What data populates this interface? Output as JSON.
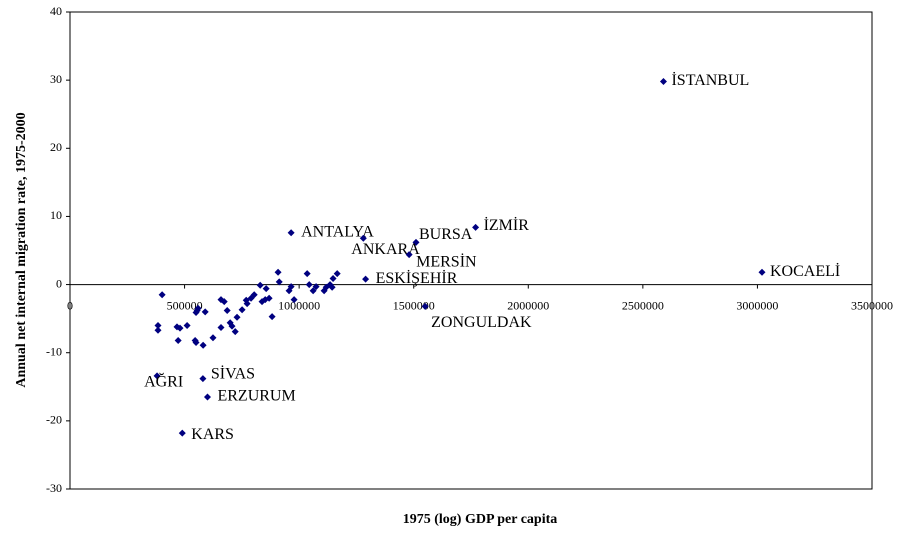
{
  "chart_data": {
    "type": "scatter",
    "x_label": "1975 (log) GDP per capita",
    "y_label": "Annual net internal migration rate, 1975-2000",
    "xlim": [
      0,
      3500000
    ],
    "xticks": [
      0,
      500000,
      1000000,
      1500000,
      2000000,
      2500000,
      3000000,
      3500000
    ],
    "ylim": [
      -30,
      40
    ],
    "yticks": [
      -30,
      -20,
      -10,
      0,
      10,
      20,
      30,
      40
    ],
    "series": [
      {
        "color": "#000080",
        "x": [
          2590000,
          3020000,
          1770000,
          1510000,
          965000,
          1280000,
          1480000,
          1290000,
          1550000,
          380000,
          580000,
          600000,
          490000,
          402000,
          384000,
          384000,
          467000,
          480000,
          511000,
          472000,
          550000,
          550000,
          555000,
          559000,
          590000,
          546000,
          581000,
          624000,
          659000,
          659000,
          673000,
          686000,
          699000,
          707000,
          729000,
          721000,
          751000,
          773000,
          769000,
          790000,
          804000,
          830000,
          838000,
          856000,
          852000,
          869000,
          882000,
          908000,
          913000,
          956000,
          965000,
          978000,
          1035000,
          1044000,
          1061000,
          1074000,
          1109000,
          1118000,
          1135000,
          1148000,
          1144000,
          1166000
        ],
        "values": [
          29.8,
          1.8,
          8.4,
          6.2,
          7.6,
          6.8,
          4.4,
          0.8,
          -3.2,
          -13.4,
          -13.8,
          -16.5,
          -21.8,
          -1.5,
          -6.0,
          -6.7,
          -6.2,
          -6.4,
          -6.0,
          -8.2,
          -8.5,
          -4.1,
          -3.8,
          -3.5,
          -4.0,
          -8.2,
          -8.9,
          -7.8,
          -6.3,
          -2.2,
          -2.5,
          -3.8,
          -5.6,
          -6.1,
          -4.8,
          -6.9,
          -3.7,
          -2.8,
          -2.3,
          -2.0,
          -1.5,
          -0.1,
          -2.5,
          -0.6,
          -2.2,
          -2.0,
          -4.7,
          1.8,
          0.4,
          -0.9,
          -0.3,
          -2.2,
          1.6,
          0.0,
          -0.9,
          -0.3,
          -0.9,
          -0.4,
          0.0,
          0.9,
          -0.4,
          1.6
        ],
        "labels": [
          "İSTANBUL",
          "KOCAELİ",
          "İZMİR",
          "BURSA",
          "ANTALYA",
          "ANKARA",
          "MERSİN",
          "ESKİŞEHİR",
          "ZONGULDAK",
          "AĞRI",
          "SİVAS",
          "ERZURUM",
          "KARS",
          null,
          null,
          null,
          null,
          null,
          null,
          null,
          null,
          null,
          null,
          null,
          null,
          null,
          null,
          null,
          null,
          null,
          null,
          null,
          null,
          null,
          null,
          null,
          null,
          null,
          null,
          null,
          null,
          null,
          null,
          null,
          null,
          null,
          null,
          null,
          null,
          null,
          null,
          null,
          null,
          null,
          null,
          null,
          null,
          null,
          null,
          null,
          null,
          null
        ]
      }
    ]
  }
}
